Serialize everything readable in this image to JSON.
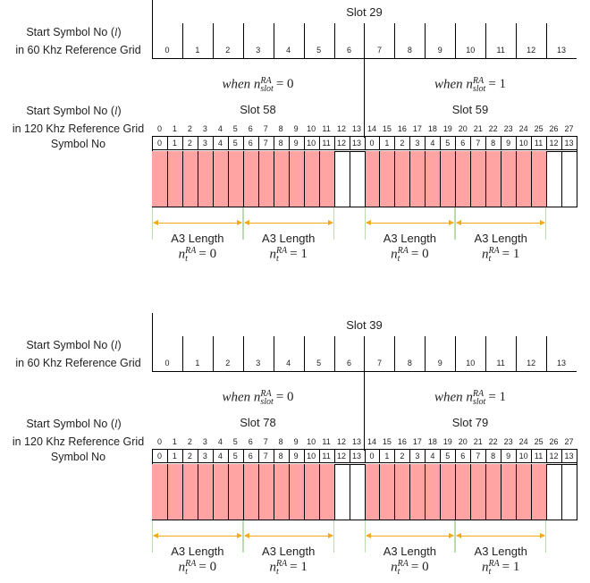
{
  "labels": {
    "start_symbol_60_line1": "Start Symbol No (",
    "l_symbol": "l",
    "close_paren": ")",
    "ref_grid_60": "in 60 Khz Reference Grid",
    "start_symbol_120_line1": "Start Symbol No (",
    "ref_grid_120": "in 120 Khz Reference Grid",
    "symbol_no": "Symbol No"
  },
  "when_prefix": "when n",
  "nslot_sup": "RA",
  "nslot_sub": "slot",
  "nt_prefix": "n",
  "nt_sup": "RA",
  "nt_sub": "t",
  "length_label": "A3 Length",
  "slots60_numbers": [
    "0",
    "1",
    "2",
    "3",
    "4",
    "5",
    "6",
    "7",
    "8",
    "9",
    "10",
    "11",
    "12",
    "13"
  ],
  "grid120_numbers": [
    "0",
    "1",
    "2",
    "3",
    "4",
    "5",
    "6",
    "7",
    "8",
    "9",
    "10",
    "11",
    "12",
    "13",
    "14",
    "15",
    "16",
    "17",
    "18",
    "19",
    "20",
    "21",
    "22",
    "23",
    "24",
    "25",
    "26",
    "27"
  ],
  "sym_numbers": [
    "0",
    "1",
    "2",
    "3",
    "4",
    "5",
    "6",
    "7",
    "8",
    "9",
    "10",
    "11",
    "12",
    "13",
    "0",
    "1",
    "2",
    "3",
    "4",
    "5",
    "6",
    "7",
    "8",
    "9",
    "10",
    "11",
    "12",
    "13"
  ],
  "panels": [
    {
      "slot60_title": "Slot 29",
      "half": [
        {
          "when": "= 0",
          "slot120": "Slot 58"
        },
        {
          "when": "= 1",
          "slot120": "Slot 59"
        }
      ],
      "bottoms": [
        {
          "nt": "= 0"
        },
        {
          "nt": "= 1"
        },
        {
          "nt": "= 0"
        },
        {
          "nt": "= 1"
        }
      ]
    },
    {
      "slot60_title": "Slot 39",
      "half": [
        {
          "when": "= 0",
          "slot120": "Slot 78"
        },
        {
          "when": "= 1",
          "slot120": "Slot 79"
        }
      ],
      "bottoms": [
        {
          "nt": "= 0"
        },
        {
          "nt": "= 1"
        },
        {
          "nt": "= 0"
        },
        {
          "nt": "= 1"
        }
      ]
    }
  ],
  "colors": {
    "shade": "#ffa3a3",
    "arrow": "#f2a91c",
    "tick": "#b9dcb0"
  }
}
